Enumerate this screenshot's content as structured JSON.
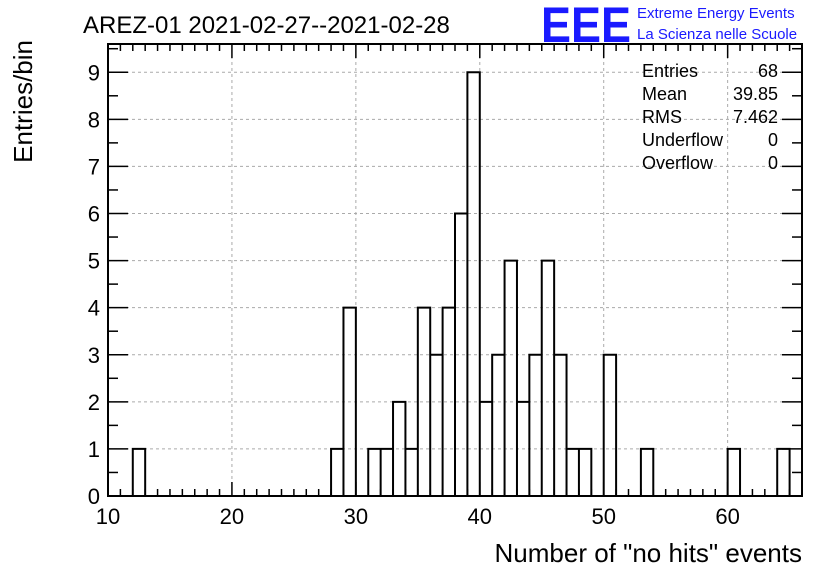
{
  "title": "AREZ-01 2021-02-27--2021-02-28",
  "logo": {
    "mark": "EEE",
    "line1": "Extreme Energy Events",
    "line2": "La Scienza nelle Scuole",
    "color": "#1a1aff"
  },
  "stats": [
    {
      "label": "Entries",
      "value": "68"
    },
    {
      "label": "Mean",
      "value": "39.85"
    },
    {
      "label": "RMS",
      "value": "7.462"
    },
    {
      "label": "Underflow",
      "value": "0"
    },
    {
      "label": "Overflow",
      "value": "0"
    }
  ],
  "chart_data": {
    "type": "bar",
    "histogram": true,
    "title": "AREZ-01 2021-02-27--2021-02-28",
    "xlabel": "Number of \"no hits\" events",
    "ylabel": "Entries/bin",
    "xlim": [
      10,
      66
    ],
    "ylim": [
      0,
      9.6
    ],
    "bin_width": 1,
    "xticks": [
      10,
      20,
      30,
      40,
      50,
      60
    ],
    "yticks": [
      0,
      1,
      2,
      3,
      4,
      5,
      6,
      7,
      8,
      9
    ],
    "grid": true,
    "bins": [
      {
        "x": 12,
        "value": 1
      },
      {
        "x": 28,
        "value": 1
      },
      {
        "x": 29,
        "value": 4
      },
      {
        "x": 31,
        "value": 1
      },
      {
        "x": 32,
        "value": 1
      },
      {
        "x": 33,
        "value": 2
      },
      {
        "x": 34,
        "value": 1
      },
      {
        "x": 35,
        "value": 4
      },
      {
        "x": 36,
        "value": 3
      },
      {
        "x": 37,
        "value": 4
      },
      {
        "x": 38,
        "value": 6
      },
      {
        "x": 39,
        "value": 9
      },
      {
        "x": 40,
        "value": 2
      },
      {
        "x": 41,
        "value": 3
      },
      {
        "x": 42,
        "value": 5
      },
      {
        "x": 43,
        "value": 2
      },
      {
        "x": 44,
        "value": 3
      },
      {
        "x": 45,
        "value": 5
      },
      {
        "x": 46,
        "value": 3
      },
      {
        "x": 47,
        "value": 1
      },
      {
        "x": 48,
        "value": 1
      },
      {
        "x": 50,
        "value": 3
      },
      {
        "x": 53,
        "value": 1
      },
      {
        "x": 60,
        "value": 1
      },
      {
        "x": 64,
        "value": 1
      }
    ]
  }
}
